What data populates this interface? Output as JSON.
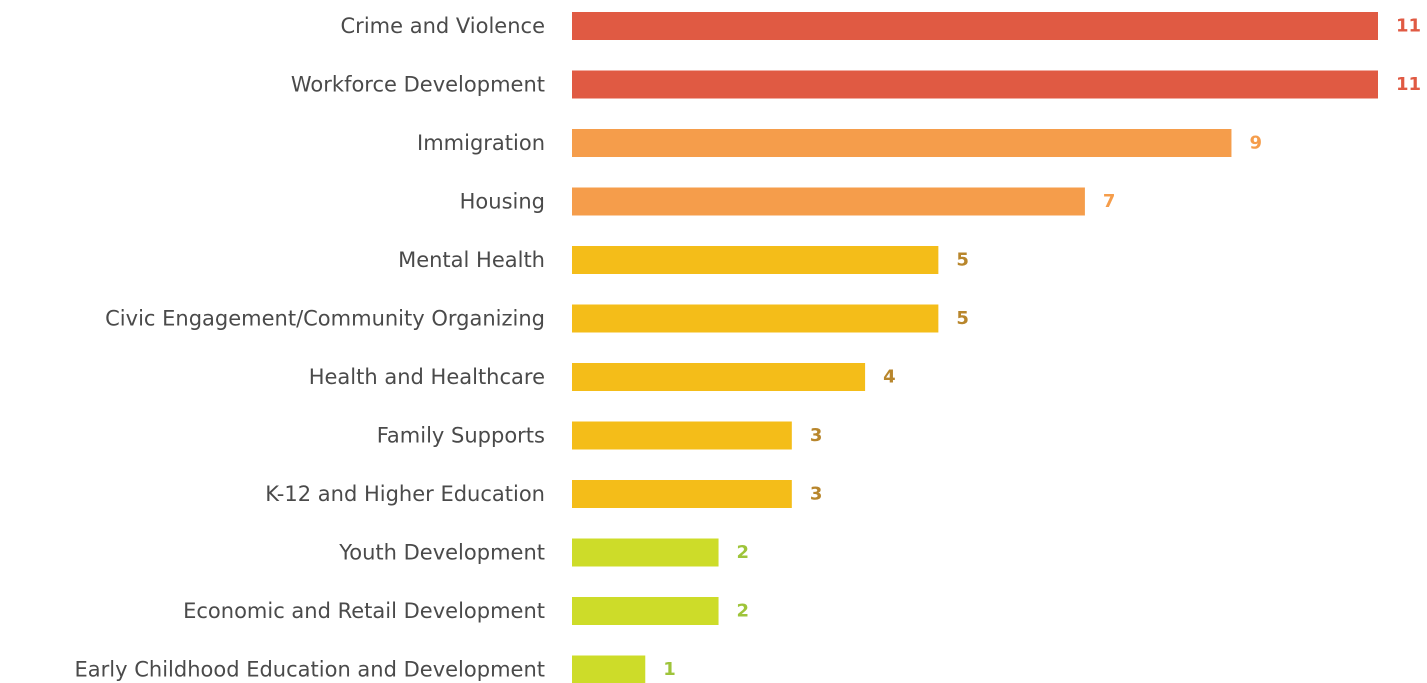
{
  "chart_data": {
    "type": "bar",
    "orientation": "horizontal",
    "title": "",
    "xlabel": "",
    "ylabel": "",
    "categories": [
      "Crime and Violence",
      "Workforce Development",
      "Immigration",
      "Housing",
      "Mental Health",
      "Civic Engagement/Community Organizing",
      "Health and Healthcare",
      "Family Supports",
      "K-12 and Higher Education",
      "Youth Development",
      "Economic and Retail Development",
      "Early Childhood Education and Development"
    ],
    "values": [
      11,
      11,
      9,
      7,
      5,
      5,
      4,
      3,
      3,
      2,
      2,
      1
    ],
    "value_labels": [
      "11",
      "11",
      "9",
      "7",
      "5",
      "5",
      "4",
      "3",
      "3",
      "2",
      "2",
      "1"
    ],
    "xlim": [
      0,
      11
    ],
    "grid": false,
    "legend": "none",
    "bar_colors": [
      "#e05a43",
      "#e05a43",
      "#f59d4b",
      "#f59d4b",
      "#f4bd19",
      "#f4bd19",
      "#f4bd19",
      "#f4bd19",
      "#f4bd19",
      "#cddc29",
      "#cddc29",
      "#cddc29"
    ],
    "value_label_colors": [
      "#e05a43",
      "#e05a43",
      "#f59d4b",
      "#f59d4b",
      "#b8862c",
      "#b8862c",
      "#b8862c",
      "#b8862c",
      "#b8862c",
      "#9ec43a",
      "#9ec43a",
      "#9ec43a"
    ]
  }
}
